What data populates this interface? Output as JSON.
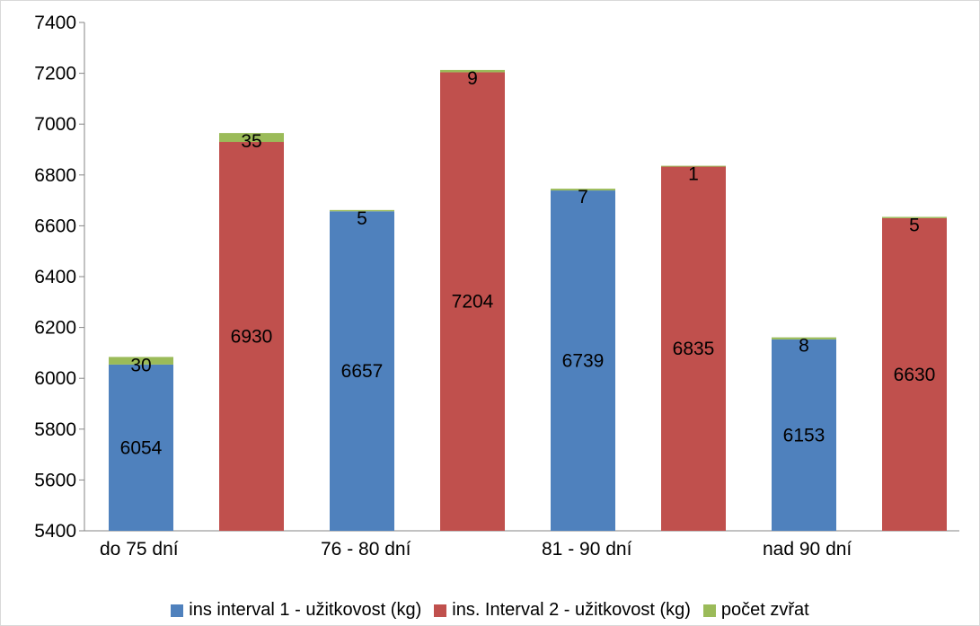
{
  "chart_data": {
    "type": "bar",
    "stacked": true,
    "ylim": [
      5400,
      7400
    ],
    "yticks": [
      5400,
      5600,
      5800,
      6000,
      6200,
      6400,
      6600,
      6800,
      7000,
      7200,
      7400
    ],
    "grid": false,
    "legend_position": "bottom",
    "category_labels": [
      "do 75 dní",
      "76 - 80 dní",
      "81 - 90 dní",
      "nad 90 dní"
    ],
    "series": [
      {
        "name": "ins interval 1 - užitkovost (kg)",
        "color": "#4f81bd"
      },
      {
        "name": "ins. Interval 2 - užitkovost (kg)",
        "color": "#c0504d"
      },
      {
        "name": "počet zvřat",
        "color": "#9bbb59"
      }
    ],
    "bars": [
      {
        "category": "do 75 dní",
        "series": 0,
        "value": 6054,
        "count": 30
      },
      {
        "category": "do 75 dní",
        "series": 1,
        "value": 6930,
        "count": 35
      },
      {
        "category": "76 - 80 dní",
        "series": 0,
        "value": 6657,
        "count": 5
      },
      {
        "category": "76 - 80 dní",
        "series": 1,
        "value": 7204,
        "count": 9
      },
      {
        "category": "81 - 90 dní",
        "series": 0,
        "value": 6739,
        "count": 7
      },
      {
        "category": "81 - 90 dní",
        "series": 1,
        "value": 6835,
        "count": 1
      },
      {
        "category": "nad 90 dní",
        "series": 0,
        "value": 6153,
        "count": 8
      },
      {
        "category": "nad 90 dní",
        "series": 1,
        "value": 6630,
        "count": 5
      }
    ]
  }
}
